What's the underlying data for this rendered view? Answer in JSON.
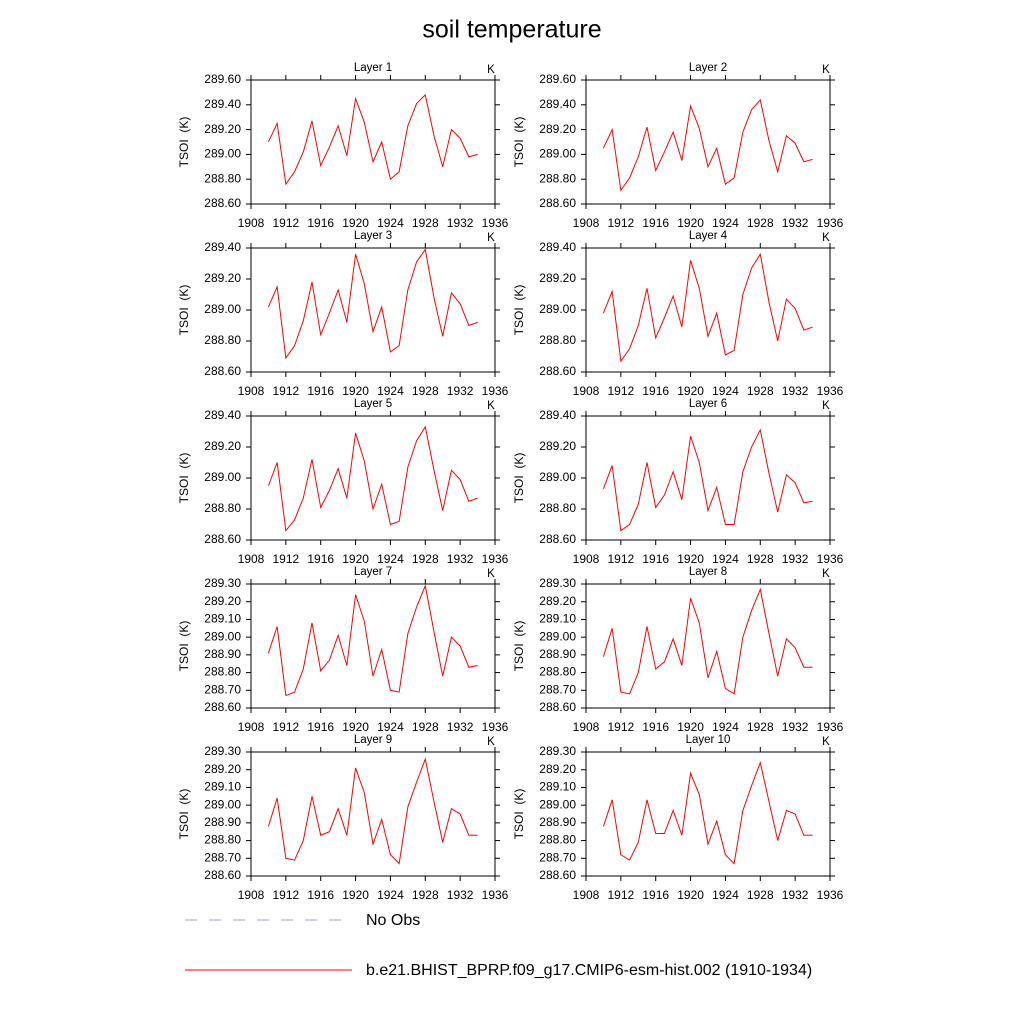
{
  "title": "soil temperature",
  "legend": [
    {
      "name": "No Obs",
      "color": "#9999ff",
      "dash": true
    },
    {
      "name": "b.e21.BHIST_BPRP.f09_g17.CMIP6-esm-hist.002 (1910-1934)",
      "color": "#ff0000",
      "dash": false
    }
  ],
  "chart_data": [
    {
      "type": "line",
      "title": "Layer 1",
      "units": "K",
      "ylabel": "TSOI  (K)",
      "x": [
        1910,
        1911,
        1912,
        1913,
        1914,
        1915,
        1916,
        1917,
        1918,
        1919,
        1920,
        1921,
        1922,
        1923,
        1924,
        1925,
        1926,
        1927,
        1928,
        1929,
        1930,
        1931,
        1932,
        1933,
        1934
      ],
      "series": [
        {
          "color": "#ff0000",
          "values": [
            289.1,
            289.25,
            288.76,
            288.86,
            289.02,
            289.27,
            288.91,
            289.06,
            289.23,
            288.99,
            289.45,
            289.26,
            288.94,
            289.1,
            288.8,
            288.86,
            289.23,
            289.41,
            289.48,
            289.15,
            288.9,
            289.2,
            289.13,
            288.98,
            289.0
          ]
        }
      ],
      "xlim": [
        1908,
        1936
      ],
      "xticks": [
        1908,
        1912,
        1916,
        1920,
        1924,
        1928,
        1932,
        1936
      ],
      "ylim": [
        288.6,
        289.6
      ],
      "yticks": [
        {
          "value": 288.6,
          "label": "288.60"
        },
        {
          "value": 288.8,
          "label": "288.80"
        },
        {
          "value": 289.0,
          "label": "289.00"
        },
        {
          "value": 289.2,
          "label": "289.20"
        },
        {
          "value": 289.4,
          "label": "289.40"
        },
        {
          "value": 289.6,
          "label": "289.60"
        }
      ]
    },
    {
      "type": "line",
      "title": "Layer 2",
      "units": "K",
      "ylabel": "TSOI  (K)",
      "x": [
        1910,
        1911,
        1912,
        1913,
        1914,
        1915,
        1916,
        1917,
        1918,
        1919,
        1920,
        1921,
        1922,
        1923,
        1924,
        1925,
        1926,
        1927,
        1928,
        1929,
        1930,
        1931,
        1932,
        1933,
        1934
      ],
      "series": [
        {
          "color": "#ff0000",
          "values": [
            289.05,
            289.2,
            288.71,
            288.81,
            288.98,
            289.22,
            288.87,
            289.02,
            289.18,
            288.95,
            289.39,
            289.21,
            288.9,
            289.05,
            288.76,
            288.81,
            289.18,
            289.36,
            289.44,
            289.11,
            288.86,
            289.15,
            289.09,
            288.94,
            288.96
          ]
        }
      ],
      "xlim": [
        1908,
        1936
      ],
      "xticks": [
        1908,
        1912,
        1916,
        1920,
        1924,
        1928,
        1932,
        1936
      ],
      "ylim": [
        288.6,
        289.6
      ],
      "yticks": [
        {
          "value": 288.6,
          "label": "288.60"
        },
        {
          "value": 288.8,
          "label": "288.80"
        },
        {
          "value": 289.0,
          "label": "289.00"
        },
        {
          "value": 289.2,
          "label": "289.20"
        },
        {
          "value": 289.4,
          "label": "289.40"
        },
        {
          "value": 289.6,
          "label": "289.60"
        }
      ]
    },
    {
      "type": "line",
      "title": "Layer 3",
      "units": "K",
      "ylabel": "TSOI  (K)",
      "x": [
        1910,
        1911,
        1912,
        1913,
        1914,
        1915,
        1916,
        1917,
        1918,
        1919,
        1920,
        1921,
        1922,
        1923,
        1924,
        1925,
        1926,
        1927,
        1928,
        1929,
        1930,
        1931,
        1932,
        1933,
        1934
      ],
      "series": [
        {
          "color": "#ff0000",
          "values": [
            289.02,
            289.15,
            288.69,
            288.77,
            288.93,
            289.18,
            288.84,
            288.98,
            289.13,
            288.92,
            289.36,
            289.17,
            288.86,
            289.02,
            288.73,
            288.77,
            289.13,
            289.31,
            289.39,
            289.08,
            288.83,
            289.11,
            289.04,
            288.9,
            288.92
          ]
        }
      ],
      "xlim": [
        1908,
        1936
      ],
      "xticks": [
        1908,
        1912,
        1916,
        1920,
        1924,
        1928,
        1932,
        1936
      ],
      "ylim": [
        288.6,
        289.4
      ],
      "yticks": [
        {
          "value": 288.6,
          "label": "288.60"
        },
        {
          "value": 288.8,
          "label": "288.80"
        },
        {
          "value": 289.0,
          "label": "289.00"
        },
        {
          "value": 289.2,
          "label": "289.20"
        },
        {
          "value": 289.4,
          "label": "289.40"
        }
      ]
    },
    {
      "type": "line",
      "title": "Layer 4",
      "units": "K",
      "ylabel": "TSOI  (K)",
      "x": [
        1910,
        1911,
        1912,
        1913,
        1914,
        1915,
        1916,
        1917,
        1918,
        1919,
        1920,
        1921,
        1922,
        1923,
        1924,
        1925,
        1926,
        1927,
        1928,
        1929,
        1930,
        1931,
        1932,
        1933,
        1934
      ],
      "series": [
        {
          "color": "#ff0000",
          "values": [
            288.98,
            289.12,
            288.67,
            288.75,
            288.9,
            289.14,
            288.82,
            288.95,
            289.09,
            288.89,
            289.32,
            289.14,
            288.83,
            288.98,
            288.71,
            288.74,
            289.1,
            289.27,
            289.36,
            289.05,
            288.8,
            289.07,
            289.01,
            288.87,
            288.89
          ]
        }
      ],
      "xlim": [
        1908,
        1936
      ],
      "xticks": [
        1908,
        1912,
        1916,
        1920,
        1924,
        1928,
        1932,
        1936
      ],
      "ylim": [
        288.6,
        289.4
      ],
      "yticks": [
        {
          "value": 288.6,
          "label": "288.60"
        },
        {
          "value": 288.8,
          "label": "288.80"
        },
        {
          "value": 289.0,
          "label": "289.00"
        },
        {
          "value": 289.2,
          "label": "289.20"
        },
        {
          "value": 289.4,
          "label": "289.40"
        }
      ]
    },
    {
      "type": "line",
      "title": "Layer 5",
      "units": "K",
      "ylabel": "TSOI  (K)",
      "x": [
        1910,
        1911,
        1912,
        1913,
        1914,
        1915,
        1916,
        1917,
        1918,
        1919,
        1920,
        1921,
        1922,
        1923,
        1924,
        1925,
        1926,
        1927,
        1928,
        1929,
        1930,
        1931,
        1932,
        1933,
        1934
      ],
      "series": [
        {
          "color": "#ff0000",
          "values": [
            288.95,
            289.1,
            288.66,
            288.73,
            288.87,
            289.12,
            288.81,
            288.92,
            289.06,
            288.87,
            289.29,
            289.11,
            288.8,
            288.96,
            288.7,
            288.72,
            289.07,
            289.24,
            289.33,
            289.05,
            288.79,
            289.05,
            288.99,
            288.85,
            288.87
          ]
        }
      ],
      "xlim": [
        1908,
        1936
      ],
      "xticks": [
        1908,
        1912,
        1916,
        1920,
        1924,
        1928,
        1932,
        1936
      ],
      "ylim": [
        288.6,
        289.4
      ],
      "yticks": [
        {
          "value": 288.6,
          "label": "288.60"
        },
        {
          "value": 288.8,
          "label": "288.80"
        },
        {
          "value": 289.0,
          "label": "289.00"
        },
        {
          "value": 289.2,
          "label": "289.20"
        },
        {
          "value": 289.4,
          "label": "289.40"
        }
      ]
    },
    {
      "type": "line",
      "title": "Layer 6",
      "units": "K",
      "ylabel": "TSOI  (K)",
      "x": [
        1910,
        1911,
        1912,
        1913,
        1914,
        1915,
        1916,
        1917,
        1918,
        1919,
        1920,
        1921,
        1922,
        1923,
        1924,
        1925,
        1926,
        1927,
        1928,
        1929,
        1930,
        1931,
        1932,
        1933,
        1934
      ],
      "series": [
        {
          "color": "#ff0000",
          "values": [
            288.93,
            289.08,
            288.66,
            288.7,
            288.83,
            289.1,
            288.81,
            288.89,
            289.04,
            288.86,
            289.27,
            289.1,
            288.79,
            288.94,
            288.7,
            288.7,
            289.04,
            289.2,
            289.31,
            289.03,
            288.78,
            289.02,
            288.97,
            288.84,
            288.85
          ]
        }
      ],
      "xlim": [
        1908,
        1936
      ],
      "xticks": [
        1908,
        1912,
        1916,
        1920,
        1924,
        1928,
        1932,
        1936
      ],
      "ylim": [
        288.6,
        289.4
      ],
      "yticks": [
        {
          "value": 288.6,
          "label": "288.60"
        },
        {
          "value": 288.8,
          "label": "288.80"
        },
        {
          "value": 289.0,
          "label": "289.00"
        },
        {
          "value": 289.2,
          "label": "289.20"
        },
        {
          "value": 289.4,
          "label": "289.40"
        }
      ]
    },
    {
      "type": "line",
      "title": "Layer 7",
      "units": "K",
      "ylabel": "TSOI  (K)",
      "x": [
        1910,
        1911,
        1912,
        1913,
        1914,
        1915,
        1916,
        1917,
        1918,
        1919,
        1920,
        1921,
        1922,
        1923,
        1924,
        1925,
        1926,
        1927,
        1928,
        1929,
        1930,
        1931,
        1932,
        1933,
        1934
      ],
      "series": [
        {
          "color": "#ff0000",
          "values": [
            288.91,
            289.06,
            288.67,
            288.69,
            288.82,
            289.08,
            288.81,
            288.87,
            289.01,
            288.84,
            289.24,
            289.09,
            288.78,
            288.93,
            288.7,
            288.69,
            289.02,
            289.17,
            289.29,
            289.03,
            288.78,
            289.0,
            288.95,
            288.83,
            288.84
          ]
        }
      ],
      "xlim": [
        1908,
        1936
      ],
      "xticks": [
        1908,
        1912,
        1916,
        1920,
        1924,
        1928,
        1932,
        1936
      ],
      "ylim": [
        288.6,
        289.3
      ],
      "yticks": [
        {
          "value": 288.6,
          "label": "288.60"
        },
        {
          "value": 288.7,
          "label": "288.70"
        },
        {
          "value": 288.8,
          "label": "288.80"
        },
        {
          "value": 288.9,
          "label": "288.90"
        },
        {
          "value": 289.0,
          "label": "289.00"
        },
        {
          "value": 289.1,
          "label": "289.10"
        },
        {
          "value": 289.2,
          "label": "289.20"
        },
        {
          "value": 289.3,
          "label": "289.30"
        }
      ]
    },
    {
      "type": "line",
      "title": "Layer 8",
      "units": "K",
      "ylabel": "TSOI  (K)",
      "x": [
        1910,
        1911,
        1912,
        1913,
        1914,
        1915,
        1916,
        1917,
        1918,
        1919,
        1920,
        1921,
        1922,
        1923,
        1924,
        1925,
        1926,
        1927,
        1928,
        1929,
        1930,
        1931,
        1932,
        1933,
        1934
      ],
      "series": [
        {
          "color": "#ff0000",
          "values": [
            288.89,
            289.05,
            288.69,
            288.68,
            288.8,
            289.06,
            288.82,
            288.86,
            288.99,
            288.84,
            289.22,
            289.08,
            288.77,
            288.92,
            288.71,
            288.68,
            289.0,
            289.15,
            289.27,
            289.02,
            288.78,
            288.99,
            288.94,
            288.83,
            288.83
          ]
        }
      ],
      "xlim": [
        1908,
        1936
      ],
      "xticks": [
        1908,
        1912,
        1916,
        1920,
        1924,
        1928,
        1932,
        1936
      ],
      "ylim": [
        288.6,
        289.3
      ],
      "yticks": [
        {
          "value": 288.6,
          "label": "288.60"
        },
        {
          "value": 288.7,
          "label": "288.70"
        },
        {
          "value": 288.8,
          "label": "288.80"
        },
        {
          "value": 288.9,
          "label": "288.90"
        },
        {
          "value": 289.0,
          "label": "289.00"
        },
        {
          "value": 289.1,
          "label": "289.10"
        },
        {
          "value": 289.2,
          "label": "289.20"
        },
        {
          "value": 289.3,
          "label": "289.30"
        }
      ]
    },
    {
      "type": "line",
      "title": "Layer 9",
      "units": "K",
      "ylabel": "TSOI  (K)",
      "x": [
        1910,
        1911,
        1912,
        1913,
        1914,
        1915,
        1916,
        1917,
        1918,
        1919,
        1920,
        1921,
        1922,
        1923,
        1924,
        1925,
        1926,
        1927,
        1928,
        1929,
        1930,
        1931,
        1932,
        1933,
        1934
      ],
      "series": [
        {
          "color": "#ff0000",
          "values": [
            288.88,
            289.04,
            288.7,
            288.69,
            288.8,
            289.05,
            288.83,
            288.85,
            288.98,
            288.83,
            289.21,
            289.07,
            288.78,
            288.92,
            288.72,
            288.67,
            288.99,
            289.13,
            289.26,
            289.02,
            288.79,
            288.98,
            288.95,
            288.83,
            288.83
          ]
        }
      ],
      "xlim": [
        1908,
        1936
      ],
      "xticks": [
        1908,
        1912,
        1916,
        1920,
        1924,
        1928,
        1932,
        1936
      ],
      "ylim": [
        288.6,
        289.3
      ],
      "yticks": [
        {
          "value": 288.6,
          "label": "288.60"
        },
        {
          "value": 288.7,
          "label": "288.70"
        },
        {
          "value": 288.8,
          "label": "288.80"
        },
        {
          "value": 288.9,
          "label": "288.90"
        },
        {
          "value": 289.0,
          "label": "289.00"
        },
        {
          "value": 289.1,
          "label": "289.10"
        },
        {
          "value": 289.2,
          "label": "289.20"
        },
        {
          "value": 289.3,
          "label": "289.30"
        }
      ]
    },
    {
      "type": "line",
      "title": "Layer 10",
      "units": "K",
      "ylabel": "TSOI  (K)",
      "x": [
        1910,
        1911,
        1912,
        1913,
        1914,
        1915,
        1916,
        1917,
        1918,
        1919,
        1920,
        1921,
        1922,
        1923,
        1924,
        1925,
        1926,
        1927,
        1928,
        1929,
        1930,
        1931,
        1932,
        1933,
        1934
      ],
      "series": [
        {
          "color": "#ff0000",
          "values": [
            288.88,
            289.03,
            288.72,
            288.69,
            288.79,
            289.03,
            288.84,
            288.84,
            288.97,
            288.83,
            289.18,
            289.06,
            288.78,
            288.91,
            288.72,
            288.67,
            288.97,
            289.11,
            289.24,
            289.02,
            288.8,
            288.97,
            288.95,
            288.83,
            288.83
          ]
        }
      ],
      "xlim": [
        1908,
        1936
      ],
      "xticks": [
        1908,
        1912,
        1916,
        1920,
        1924,
        1928,
        1932,
        1936
      ],
      "ylim": [
        288.6,
        289.3
      ],
      "yticks": [
        {
          "value": 288.6,
          "label": "288.60"
        },
        {
          "value": 288.7,
          "label": "288.70"
        },
        {
          "value": 288.8,
          "label": "288.80"
        },
        {
          "value": 288.9,
          "label": "288.90"
        },
        {
          "value": 289.0,
          "label": "289.00"
        },
        {
          "value": 289.1,
          "label": "289.10"
        },
        {
          "value": 289.2,
          "label": "289.20"
        },
        {
          "value": 289.3,
          "label": "289.30"
        }
      ]
    }
  ]
}
